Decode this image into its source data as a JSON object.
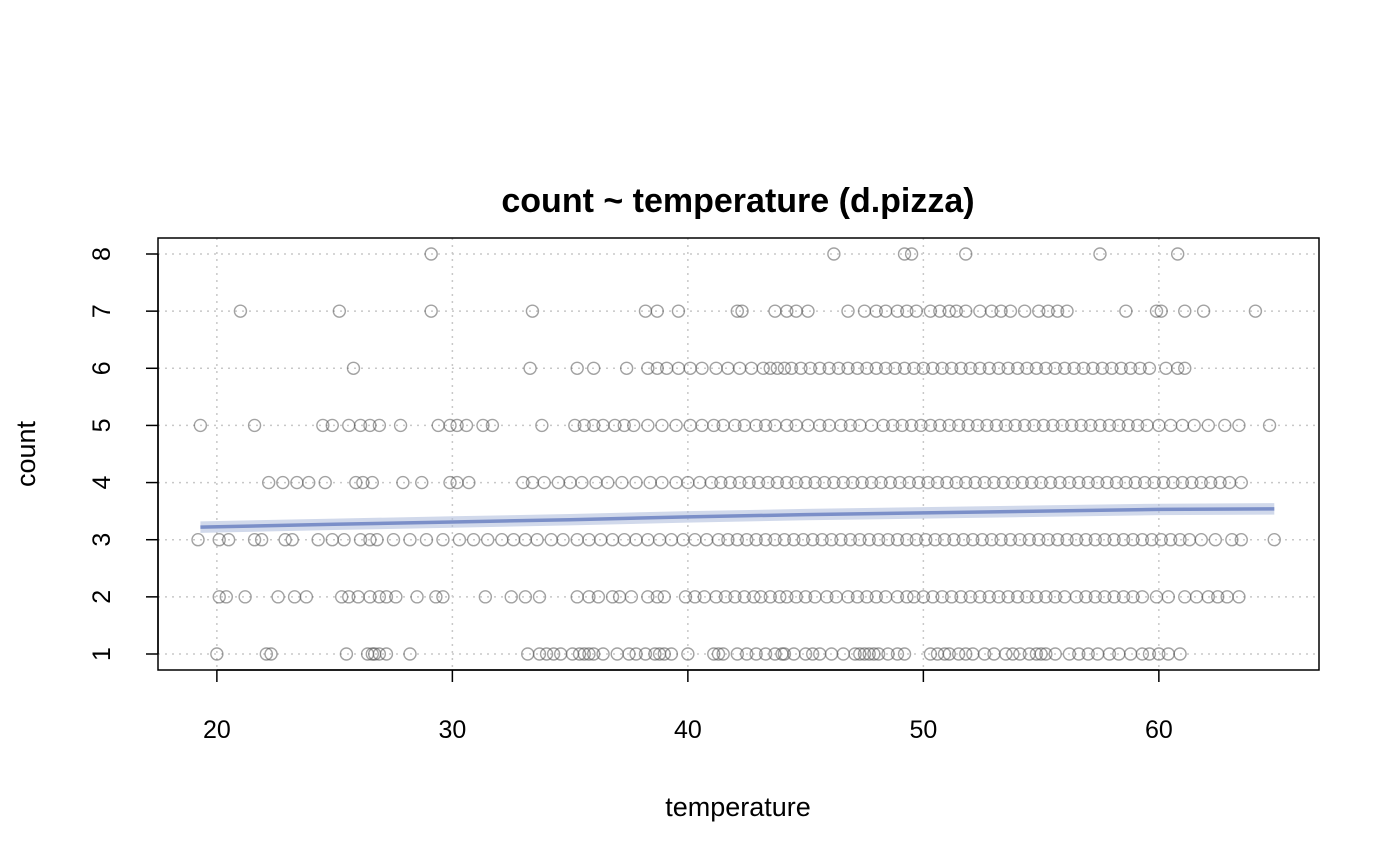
{
  "chart_data": {
    "type": "scatter",
    "title": "count ~ temperature (d.pizza)",
    "xlabel": "temperature",
    "ylabel": "count",
    "xlim": [
      17.5,
      66.8
    ],
    "ylim": [
      0.72,
      8.28
    ],
    "xticks": [
      20,
      30,
      40,
      50,
      60
    ],
    "yticks": [
      1,
      2,
      3,
      4,
      5,
      6,
      7,
      8
    ],
    "grid": true,
    "legend": "none",
    "colors": {
      "points": "#555555",
      "trend": "#7b8fc8",
      "band": "#b3c0de",
      "grid": "#c8c8c8"
    },
    "series": [
      {
        "values_by_count": {
          "1": [
            20.0,
            22.1,
            22.3,
            25.5,
            26.4,
            26.6,
            26.7,
            26.9,
            27.2,
            28.2,
            33.2,
            33.7,
            34.0,
            34.3,
            34.6,
            35.1,
            35.4,
            35.6,
            35.8,
            36.0,
            36.4,
            37.0,
            37.5,
            37.8,
            38.2,
            38.6,
            38.8,
            39.0,
            39.3,
            40.0,
            41.1,
            41.3,
            41.5,
            42.1,
            42.5,
            42.9,
            43.3,
            43.7,
            44.0,
            44.1,
            44.5,
            45.0,
            45.3,
            45.6,
            46.1,
            46.6,
            47.1,
            47.3,
            47.5,
            47.7,
            47.9,
            48.1,
            48.5,
            48.9,
            49.2,
            50.3,
            50.6,
            50.9,
            51.1,
            51.5,
            51.8,
            52.1,
            52.6,
            53.0,
            53.5,
            53.8,
            54.1,
            54.5,
            54.8,
            55.0,
            55.2,
            55.6,
            56.2,
            56.6,
            57.0,
            57.4,
            57.9,
            58.3,
            58.8,
            59.3,
            59.6,
            60.0,
            60.4,
            60.9
          ],
          "2": [
            20.1,
            20.4,
            21.2,
            22.6,
            23.3,
            23.8,
            25.3,
            25.6,
            26.0,
            26.5,
            26.9,
            27.2,
            27.6,
            28.5,
            29.3,
            29.6,
            31.4,
            32.5,
            33.1,
            33.7,
            35.3,
            35.8,
            36.2,
            36.8,
            37.1,
            37.6,
            38.3,
            38.7,
            39.0,
            39.9,
            40.3,
            40.7,
            41.2,
            41.6,
            42.0,
            42.4,
            42.8,
            43.1,
            43.5,
            43.9,
            44.2,
            44.6,
            45.0,
            45.4,
            45.9,
            46.3,
            46.8,
            47.2,
            47.6,
            48.0,
            48.4,
            48.9,
            49.3,
            49.6,
            50.0,
            50.4,
            50.8,
            51.2,
            51.6,
            52.0,
            52.4,
            52.8,
            53.2,
            53.6,
            54.0,
            54.4,
            54.8,
            55.2,
            55.6,
            56.0,
            56.5,
            56.9,
            57.3,
            57.7,
            58.1,
            58.5,
            58.9,
            59.3,
            59.9,
            60.4,
            61.1,
            61.6,
            62.1,
            62.5,
            62.9,
            63.4
          ],
          "3": [
            19.2,
            20.1,
            20.5,
            21.6,
            21.9,
            22.9,
            23.2,
            24.3,
            24.9,
            25.4,
            26.1,
            26.5,
            26.8,
            27.5,
            28.2,
            28.9,
            29.6,
            30.3,
            30.9,
            31.5,
            32.1,
            32.6,
            33.1,
            33.6,
            34.2,
            34.7,
            35.3,
            35.8,
            36.3,
            36.8,
            37.3,
            37.8,
            38.3,
            38.8,
            39.3,
            39.8,
            40.3,
            40.8,
            41.3,
            41.7,
            42.1,
            42.5,
            42.9,
            43.3,
            43.7,
            44.1,
            44.5,
            44.9,
            45.3,
            45.7,
            46.1,
            46.5,
            46.9,
            47.3,
            47.7,
            48.1,
            48.5,
            48.9,
            49.3,
            49.7,
            50.1,
            50.5,
            50.9,
            51.3,
            51.7,
            52.1,
            52.5,
            52.9,
            53.3,
            53.7,
            54.1,
            54.5,
            54.9,
            55.3,
            55.7,
            56.1,
            56.5,
            56.9,
            57.3,
            57.7,
            58.1,
            58.5,
            58.9,
            59.3,
            59.7,
            60.1,
            60.5,
            60.9,
            61.3,
            61.8,
            62.4,
            63.1,
            63.5,
            64.9
          ],
          "4": [
            22.2,
            22.8,
            23.4,
            23.9,
            24.6,
            25.9,
            26.2,
            26.6,
            27.9,
            28.7,
            29.9,
            30.2,
            30.7,
            33.0,
            33.4,
            33.9,
            34.5,
            35.0,
            35.5,
            36.1,
            36.6,
            37.2,
            37.8,
            38.4,
            38.9,
            39.5,
            40.0,
            40.5,
            41.0,
            41.4,
            41.8,
            42.2,
            42.6,
            43.0,
            43.4,
            43.8,
            44.2,
            44.6,
            45.0,
            45.4,
            45.8,
            46.2,
            46.6,
            47.0,
            47.4,
            47.8,
            48.2,
            48.6,
            49.0,
            49.4,
            49.8,
            50.2,
            50.6,
            51.0,
            51.4,
            51.8,
            52.2,
            52.6,
            53.0,
            53.4,
            53.8,
            54.2,
            54.6,
            55.0,
            55.4,
            55.8,
            56.2,
            56.6,
            57.0,
            57.4,
            57.8,
            58.2,
            58.6,
            59.0,
            59.4,
            59.8,
            60.2,
            60.6,
            61.0,
            61.4,
            61.8,
            62.2,
            62.6,
            63.0,
            63.5
          ],
          "5": [
            19.3,
            21.6,
            24.5,
            24.9,
            25.6,
            26.1,
            26.5,
            26.9,
            27.8,
            29.4,
            29.9,
            30.2,
            30.6,
            31.3,
            31.7,
            33.8,
            35.2,
            35.6,
            36.0,
            36.4,
            36.9,
            37.3,
            37.7,
            38.3,
            38.9,
            39.5,
            40.1,
            40.6,
            41.1,
            41.5,
            42.0,
            42.4,
            42.9,
            43.3,
            43.7,
            44.2,
            44.6,
            45.1,
            45.6,
            46.0,
            46.5,
            46.9,
            47.3,
            47.8,
            48.3,
            48.7,
            49.1,
            49.5,
            49.9,
            50.3,
            50.7,
            51.1,
            51.5,
            51.9,
            52.3,
            52.7,
            53.1,
            53.5,
            53.9,
            54.3,
            54.7,
            55.1,
            55.5,
            55.9,
            56.3,
            56.7,
            57.1,
            57.5,
            57.9,
            58.3,
            58.7,
            59.1,
            59.5,
            60.0,
            60.5,
            61.0,
            61.5,
            62.1,
            62.8,
            63.4,
            64.7
          ],
          "6": [
            25.8,
            33.3,
            35.3,
            36.0,
            37.4,
            38.3,
            38.7,
            39.1,
            39.6,
            40.1,
            40.6,
            41.2,
            41.7,
            42.2,
            42.7,
            43.2,
            43.5,
            43.8,
            44.1,
            44.4,
            44.8,
            45.2,
            45.6,
            46.0,
            46.4,
            46.8,
            47.2,
            47.6,
            48.0,
            48.4,
            48.8,
            49.2,
            49.6,
            50.0,
            50.4,
            50.8,
            51.2,
            51.6,
            52.0,
            52.4,
            52.8,
            53.2,
            53.6,
            54.0,
            54.4,
            54.8,
            55.2,
            55.6,
            56.0,
            56.4,
            56.8,
            57.2,
            57.6,
            58.0,
            58.4,
            58.8,
            59.2,
            59.6,
            60.3,
            60.8,
            61.1
          ],
          "7": [
            21.0,
            25.2,
            29.1,
            33.4,
            38.2,
            38.7,
            39.6,
            42.1,
            42.3,
            43.7,
            44.2,
            44.6,
            45.1,
            46.8,
            47.5,
            48.0,
            48.4,
            48.9,
            49.3,
            49.7,
            50.3,
            50.7,
            51.1,
            51.4,
            51.8,
            52.4,
            52.9,
            53.3,
            53.7,
            54.3,
            54.9,
            55.3,
            55.7,
            56.1,
            58.6,
            59.9,
            60.1,
            61.1,
            61.9,
            64.1
          ],
          "8": [
            29.1,
            46.2,
            49.2,
            49.5,
            51.8,
            57.5,
            60.8
          ]
        }
      },
      {
        "type": "line",
        "x": [
          19.3,
          25,
          30,
          35,
          40,
          45,
          50,
          55,
          60,
          64.9
        ],
        "y": [
          3.22,
          3.27,
          3.31,
          3.35,
          3.4,
          3.44,
          3.47,
          3.5,
          3.53,
          3.54
        ],
        "band_halfwidth": 0.1
      }
    ]
  }
}
